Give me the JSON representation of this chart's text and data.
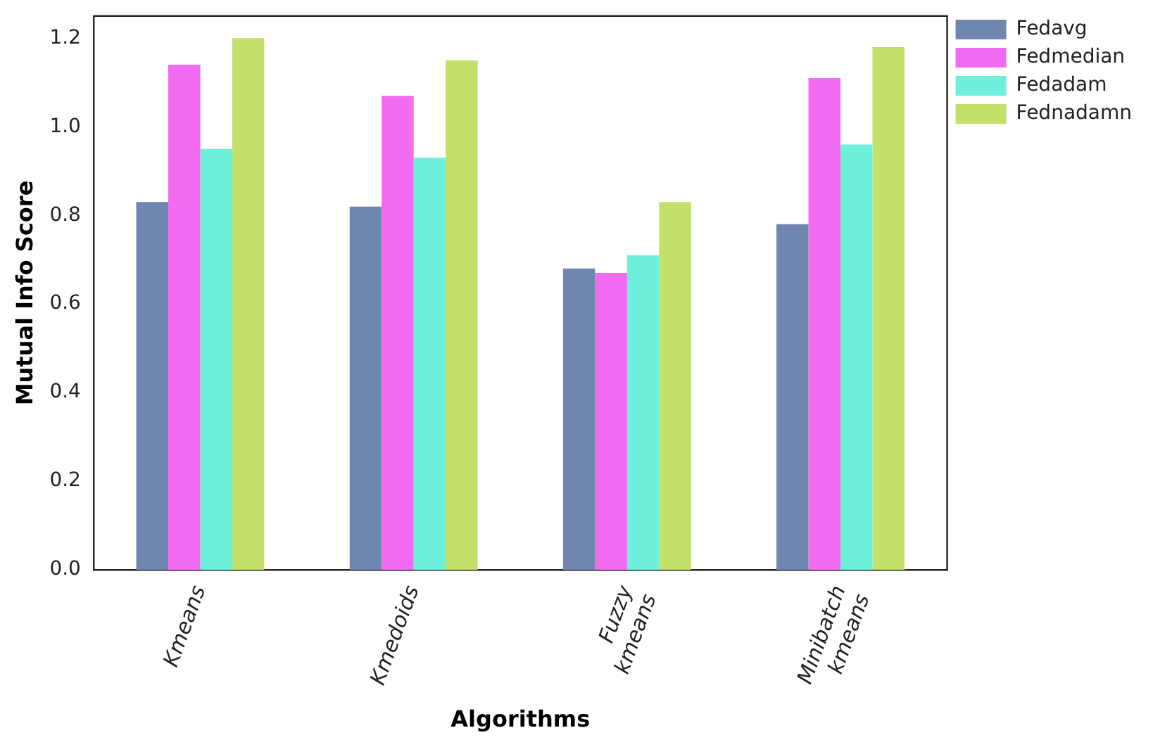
{
  "chart_data": {
    "type": "bar",
    "xlabel": "Algorithms",
    "ylabel": "Mutual Info Score",
    "categories": [
      "Kmeans",
      "Kmedoids",
      "Fuzzy\nkmeans",
      "Minibatch\nkmeans"
    ],
    "series": [
      {
        "name": "Fedavg",
        "color": "#6f86b0",
        "values": [
          0.83,
          0.82,
          0.68,
          0.78
        ]
      },
      {
        "name": "Fedmedian",
        "color": "#f26bf0",
        "values": [
          1.14,
          1.07,
          0.67,
          1.11
        ]
      },
      {
        "name": "Fedadam",
        "color": "#6ff0dc",
        "values": [
          0.95,
          0.93,
          0.71,
          0.96
        ]
      },
      {
        "name": "Fednadamn",
        "color": "#c3e06a",
        "values": [
          1.2,
          1.15,
          0.83,
          1.18
        ]
      }
    ],
    "ylim": [
      0,
      1.25
    ],
    "yticks": [
      {
        "value": 0,
        "label": "0.0"
      },
      {
        "value": 0.2,
        "label": "0.2"
      },
      {
        "value": 0.4,
        "label": "0.4"
      },
      {
        "value": 0.6,
        "label": "0.6"
      },
      {
        "value": 0.8,
        "label": "0.8"
      },
      {
        "value": 1,
        "label": "1.0"
      },
      {
        "value": 1.2,
        "label": "1.2"
      }
    ],
    "grid": false,
    "legend": "top right"
  }
}
